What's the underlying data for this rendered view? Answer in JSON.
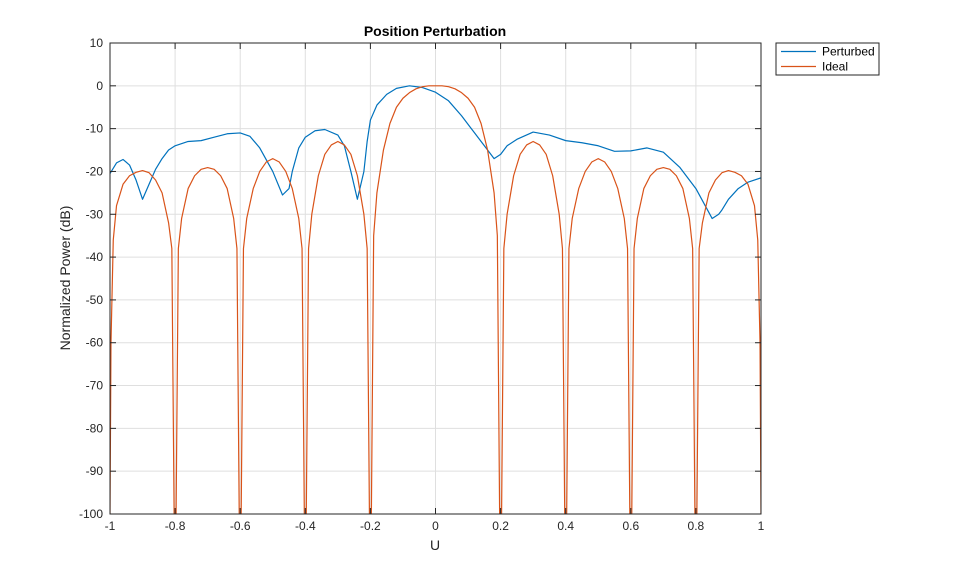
{
  "chart_data": {
    "type": "line",
    "title": "Position Perturbation",
    "xlabel": "U",
    "ylabel": "Normalized Power (dB)",
    "xlim": [
      -1,
      1
    ],
    "ylim": [
      -100,
      10
    ],
    "xticks": [
      -1,
      -0.8,
      -0.6,
      -0.4,
      -0.2,
      0,
      0.2,
      0.4,
      0.6,
      0.8,
      1
    ],
    "xtick_labels": [
      "-1",
      "-0.8",
      "-0.6",
      "-0.4",
      "-0.2",
      "0",
      "0.2",
      "0.4",
      "0.6",
      "0.8",
      "1"
    ],
    "yticks": [
      10,
      0,
      -10,
      -20,
      -30,
      -40,
      -50,
      -60,
      -70,
      -80,
      -90,
      -100
    ],
    "ytick_labels": [
      "10",
      "0",
      "-10",
      "-20",
      "-30",
      "-40",
      "-50",
      "-60",
      "-70",
      "-80",
      "-90",
      "-100"
    ],
    "grid": true,
    "legend_position": "outside-top-right",
    "series": [
      {
        "name": "Perturbed",
        "color": "#0072BD",
        "x": [
          -1,
          -0.98,
          -0.96,
          -0.94,
          -0.92,
          -0.9,
          -0.88,
          -0.86,
          -0.84,
          -0.82,
          -0.8,
          -0.76,
          -0.72,
          -0.68,
          -0.64,
          -0.6,
          -0.57,
          -0.54,
          -0.5,
          -0.47,
          -0.45,
          -0.44,
          -0.42,
          -0.4,
          -0.37,
          -0.34,
          -0.3,
          -0.28,
          -0.26,
          -0.24,
          -0.22,
          -0.21,
          -0.2,
          -0.18,
          -0.15,
          -0.12,
          -0.08,
          -0.04,
          0,
          0.04,
          0.08,
          0.12,
          0.16,
          0.18,
          0.2,
          0.22,
          0.25,
          0.3,
          0.35,
          0.4,
          0.45,
          0.5,
          0.55,
          0.6,
          0.65,
          0.7,
          0.75,
          0.8,
          0.85,
          0.87,
          0.88,
          0.9,
          0.93,
          0.96,
          1
        ],
        "y": [
          -20.5,
          -18,
          -17.2,
          -18.5,
          -22,
          -26.5,
          -23,
          -19.5,
          -17,
          -15,
          -14,
          -13,
          -12.8,
          -12,
          -11.2,
          -11,
          -11.8,
          -14.5,
          -20,
          -25.5,
          -24,
          -20,
          -14.5,
          -12,
          -10.5,
          -10.2,
          -11.5,
          -14,
          -20,
          -26.5,
          -20,
          -13,
          -8,
          -4.5,
          -2,
          -0.6,
          0,
          -0.4,
          -1.5,
          -3.5,
          -7,
          -11,
          -15,
          -17,
          -16,
          -14,
          -12.5,
          -10.8,
          -11.5,
          -12.8,
          -13.3,
          -14,
          -15.3,
          -15.2,
          -14.5,
          -15.5,
          -19,
          -24,
          -31,
          -30,
          -29,
          -26.5,
          -24,
          -22.5,
          -21.5
        ]
      },
      {
        "name": "Ideal",
        "color": "#D95319",
        "x": [
          -1,
          -0.997,
          -0.99,
          -0.98,
          -0.96,
          -0.94,
          -0.92,
          -0.9,
          -0.88,
          -0.86,
          -0.84,
          -0.82,
          -0.81,
          -0.803,
          -0.797,
          -0.79,
          -0.78,
          -0.76,
          -0.74,
          -0.72,
          -0.7,
          -0.68,
          -0.66,
          -0.64,
          -0.62,
          -0.61,
          -0.603,
          -0.597,
          -0.59,
          -0.58,
          -0.56,
          -0.54,
          -0.52,
          -0.5,
          -0.48,
          -0.46,
          -0.44,
          -0.42,
          -0.41,
          -0.403,
          -0.397,
          -0.39,
          -0.38,
          -0.36,
          -0.34,
          -0.32,
          -0.3,
          -0.28,
          -0.26,
          -0.24,
          -0.22,
          -0.21,
          -0.203,
          -0.197,
          -0.19,
          -0.18,
          -0.16,
          -0.14,
          -0.12,
          -0.1,
          -0.08,
          -0.06,
          -0.04,
          -0.02,
          0,
          0.02,
          0.04,
          0.06,
          0.08,
          0.1,
          0.12,
          0.14,
          0.16,
          0.18,
          0.19,
          0.197,
          0.203,
          0.21,
          0.22,
          0.24,
          0.26,
          0.28,
          0.3,
          0.32,
          0.34,
          0.36,
          0.38,
          0.39,
          0.397,
          0.403,
          0.41,
          0.42,
          0.44,
          0.46,
          0.48,
          0.5,
          0.52,
          0.54,
          0.56,
          0.58,
          0.59,
          0.597,
          0.603,
          0.61,
          0.62,
          0.64,
          0.66,
          0.68,
          0.7,
          0.72,
          0.74,
          0.76,
          0.78,
          0.79,
          0.797,
          0.803,
          0.81,
          0.82,
          0.84,
          0.86,
          0.88,
          0.9,
          0.92,
          0.94,
          0.96,
          0.98,
          0.99,
          0.997,
          1
        ],
        "y": [
          -100,
          -60,
          -36,
          -28,
          -23,
          -21,
          -20.2,
          -19.8,
          -20.3,
          -22,
          -25,
          -32,
          -38,
          -100,
          -100,
          -38,
          -31,
          -24,
          -21,
          -19.5,
          -19.1,
          -19.5,
          -21,
          -24,
          -31,
          -38,
          -100,
          -100,
          -38,
          -31,
          -24,
          -20,
          -17.8,
          -17,
          -17.8,
          -20,
          -24,
          -31,
          -38,
          -100,
          -100,
          -38,
          -30,
          -21,
          -16,
          -13.8,
          -13,
          -13.8,
          -16,
          -21,
          -30,
          -38,
          -100,
          -100,
          -35,
          -25,
          -15,
          -8.8,
          -5,
          -2.9,
          -1.6,
          -0.7,
          -0.2,
          0,
          0,
          0,
          -0.2,
          -0.7,
          -1.6,
          -2.9,
          -5,
          -8.8,
          -15,
          -25,
          -35,
          -100,
          -100,
          -38,
          -30,
          -21,
          -16,
          -13.8,
          -13,
          -13.8,
          -16,
          -21,
          -30,
          -38,
          -100,
          -100,
          -38,
          -31,
          -24,
          -20,
          -17.8,
          -17,
          -17.8,
          -20,
          -24,
          -31,
          -38,
          -100,
          -100,
          -38,
          -31,
          -24,
          -21,
          -19.5,
          -19.1,
          -19.5,
          -21,
          -24,
          -31,
          -38,
          -100,
          -100,
          -38,
          -32,
          -25,
          -22,
          -20.3,
          -19.8,
          -20.2,
          -21,
          -23,
          -28,
          -36,
          -60,
          -100
        ]
      }
    ]
  }
}
